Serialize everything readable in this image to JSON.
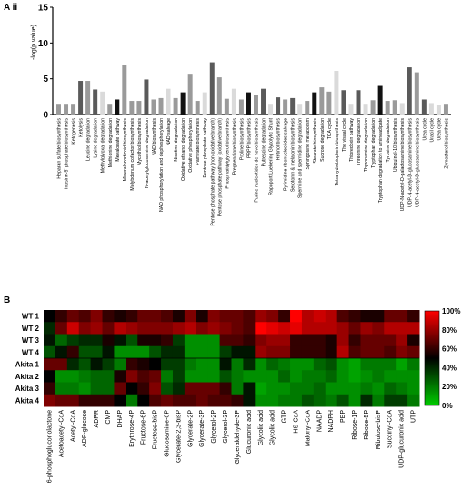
{
  "panel_a": {
    "label": "A ii"
  },
  "panel_b": {
    "label": "B"
  },
  "colors": {
    "black": "#111111",
    "dark": "#5a5a5a",
    "mid": "#9a9a9a",
    "light": "#dadada"
  },
  "chart_data": [
    {
      "type": "bar",
      "ylabel": "-log(p value)",
      "ylim": [
        0,
        15
      ],
      "yticks": [
        0,
        5,
        10,
        15
      ],
      "grid": false,
      "categories": [
        "Heparan sulfate biosynthesis",
        "Inosine-5' phosphate biosynthesis",
        "Ketogenesis",
        "Ketolysis",
        "Leucine degradation",
        "Lysine degradation",
        "Methylglyoxal degradation",
        "Methionine degradation",
        "Mevalonate pathway",
        "Mineralocorticoid biosynthesis",
        "Molybdenum cofactor biosynthesis",
        "Mycothiol biosynthesis",
        "N-acetylglucosamine degradation",
        "NAD biosynthesis",
        "NAD phosphorylation and dephosphorylation",
        "NAD salvage",
        "Nicotine degradation",
        "Oxidative ethanol degradation",
        "Oxidative phosphorylation",
        "Palmitate biosynthesis",
        "Pentose phosphate pathway",
        "Pentose phosphate pathway (non-oxidative branch)",
        "Pentose phosphate pathway (oxidative branch)",
        "Phosphatidylglycerol biosynthesis",
        "Pregnenolone biosynthesis",
        "Proline biosynthesis",
        "PRPP biosynthesis",
        "Purine nucleotides de novo biosynthesis",
        "Putrescine degradation",
        "Rapoport-Luebering Glycolytic Shunt",
        "Retinol biosynthesis",
        "Pyrimidine ribonucleotides salvage",
        "Serotonin & melatonin biosynthesis",
        "Spermine and spermidine degradation",
        "Sphingosine metabolism",
        "Stearate biosynthesis",
        "Sucrose degradation",
        "TCA cycle",
        "Tetrahydrobiopterin biosynthesis",
        "The visual cycle",
        "Thioredoxin pathway",
        "Threonine degradation",
        "Thyronamine degradation",
        "Tryptophan degradation",
        "Tryptophan degradation to aminoadipate",
        "Tyrosine degradation",
        "Ubiquinol-10 biosynthesis",
        "UDP-N-acetyl-D-galactosamine biosynthesis",
        "UDP-N-acetyl-D-glucosamine biosynthesis",
        "UDP-N-acetyl-D-glucosamine biosynthesis",
        "Urea cycle",
        "Uracil cycle",
        "Urea cycle",
        "Zymosterol biosynthesis"
      ],
      "values": [
        1.5,
        1.5,
        1.5,
        4.7,
        4.7,
        3.5,
        3.2,
        1.5,
        2.1,
        6.9,
        1.9,
        1.9,
        4.9,
        2.1,
        2.3,
        3.6,
        2.3,
        3.1,
        5.7,
        1.9,
        3.1,
        7.3,
        5.2,
        2.2,
        3.6,
        2.1,
        3.1,
        2.7,
        3.6,
        1.5,
        2.4,
        2.1,
        2.3,
        1.5,
        1.9,
        3.1,
        3.8,
        3.2,
        6.1,
        3.4,
        1.5,
        3.4,
        1.5,
        2.0,
        4.0,
        1.9,
        2.0,
        1.6,
        6.6,
        5.9,
        2.1,
        1.6,
        1.3,
        1.5
      ],
      "shades": [
        "mid",
        "mid",
        "mid",
        "dark",
        "mid",
        "dark",
        "light",
        "mid",
        "black",
        "mid",
        "mid",
        "mid",
        "dark",
        "mid",
        "mid",
        "light",
        "mid",
        "black",
        "mid",
        "mid",
        "light",
        "dark",
        "mid",
        "mid",
        "light",
        "mid",
        "black",
        "mid",
        "dark",
        "light",
        "dark",
        "mid",
        "dark",
        "light",
        "mid",
        "black",
        "mid",
        "mid",
        "light",
        "dark",
        "light",
        "dark",
        "light",
        "mid",
        "black",
        "mid",
        "mid",
        "light",
        "dark",
        "mid",
        "dark",
        "light",
        "light",
        "mid"
      ]
    },
    {
      "type": "heatmap",
      "rows": [
        "WT 1",
        "WT 2",
        "WT 3",
        "WT 4",
        "Akita 1",
        "Akita 2",
        "Akita 3",
        "Akita 4"
      ],
      "columns": [
        "6-phosphogluconolactone",
        "Acetoacetyl-CoA",
        "Acetyl-CoA",
        "ADP-glucose",
        "ADPR",
        "CMP",
        "DHAP",
        "Erythrose-4P",
        "Fructose-6P",
        "Fructose-bisP",
        "Glucosamine-6P",
        "Glycerate-2,3-bisP",
        "Glycerate-2P",
        "Glycerate-3P",
        "Glycerol-2P",
        "Glycerol-3P",
        "Glyceraldehyde-3P",
        "Glucuronic acid",
        "Glycolic acid",
        "Glycolic acid",
        "GTP",
        "HS-CoA",
        "Malonyl-CoA",
        "NAADP",
        "NADPH",
        "PEP",
        "Ribose-1P",
        "Ribose-5P",
        "Ribulose-bisP",
        "Succinyl-CoA",
        "UDP-glucuronic acid",
        "UTP"
      ],
      "colorbar": {
        "ticks": [
          "100%",
          "80%",
          "60%",
          "40%",
          "20%",
          "0%"
        ],
        "low_color": "#00cc00",
        "mid_color": "#000000",
        "high_color": "#ff0000"
      },
      "values": [
        [
          50,
          60,
          70,
          65,
          75,
          60,
          55,
          60,
          70,
          70,
          65,
          55,
          75,
          55,
          75,
          70,
          70,
          65,
          80,
          75,
          60,
          100,
          85,
          90,
          85,
          65,
          60,
          55,
          55,
          70,
          70,
          60
        ],
        [
          40,
          70,
          90,
          75,
          80,
          70,
          85,
          80,
          75,
          75,
          75,
          80,
          85,
          75,
          80,
          75,
          70,
          65,
          100,
          95,
          90,
          95,
          85,
          85,
          85,
          80,
          70,
          80,
          75,
          85,
          85,
          85
        ],
        [
          45,
          25,
          35,
          40,
          40,
          55,
          45,
          30,
          55,
          55,
          60,
          35,
          15,
          15,
          15,
          65,
          65,
          60,
          75,
          80,
          80,
          60,
          60,
          60,
          55,
          80,
          60,
          70,
          70,
          70,
          80,
          55
        ],
        [
          30,
          45,
          60,
          30,
          30,
          45,
          15,
          15,
          15,
          30,
          40,
          40,
          15,
          15,
          15,
          35,
          45,
          45,
          80,
          75,
          75,
          60,
          60,
          60,
          55,
          85,
          65,
          70,
          70,
          65,
          75,
          70
        ],
        [
          70,
          70,
          40,
          30,
          45,
          35,
          20,
          60,
          55,
          50,
          35,
          35,
          20,
          15,
          15,
          45,
          20,
          40,
          15,
          25,
          20,
          15,
          15,
          25,
          30,
          15,
          10,
          20,
          20,
          20,
          10,
          20
        ],
        [
          50,
          15,
          15,
          20,
          25,
          25,
          55,
          75,
          65,
          70,
          20,
          35,
          15,
          15,
          15,
          30,
          20,
          15,
          15,
          15,
          25,
          15,
          20,
          20,
          25,
          15,
          10,
          15,
          20,
          15,
          15,
          15
        ],
        [
          60,
          20,
          20,
          15,
          25,
          25,
          70,
          50,
          60,
          75,
          30,
          40,
          70,
          70,
          70,
          60,
          20,
          45,
          10,
          15,
          15,
          20,
          20,
          25,
          15,
          15,
          15,
          20,
          15,
          25,
          20,
          15
        ],
        [
          75,
          70,
          70,
          60,
          60,
          60,
          50,
          20,
          50,
          65,
          70,
          65,
          65,
          70,
          65,
          65,
          60,
          45,
          15,
          15,
          20,
          20,
          30,
          25,
          20,
          30,
          15,
          40,
          20,
          35,
          35,
          20
        ]
      ]
    }
  ]
}
